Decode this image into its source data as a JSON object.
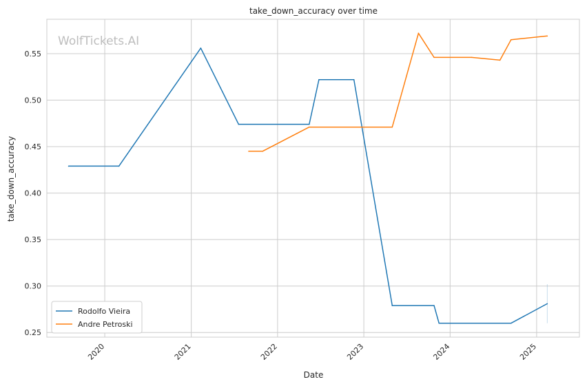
{
  "chart_data": {
    "type": "line",
    "title": "take_down_accuracy over time",
    "xlabel": "Date",
    "ylabel": "take_down_accuracy",
    "watermark": "WolfTickets.AI",
    "x_ticks": [
      "2020",
      "2021",
      "2022",
      "2023",
      "2024",
      "2025"
    ],
    "y_ticks": [
      "0.25",
      "0.30",
      "0.35",
      "0.40",
      "0.45",
      "0.50",
      "0.55"
    ],
    "ylim": [
      0.245,
      0.587
    ],
    "xlim": [
      "2019-05-01",
      "2025-07-01"
    ],
    "grid": true,
    "legend_position": "lower-left",
    "series": [
      {
        "name": "Rodolfo Vieira",
        "color": "#1f77b4",
        "points": [
          {
            "x": "2019-08-01",
            "y": 0.429
          },
          {
            "x": "2020-03-01",
            "y": 0.429
          },
          {
            "x": "2021-02-10",
            "y": 0.556
          },
          {
            "x": "2021-07-20",
            "y": 0.474
          },
          {
            "x": "2022-05-15",
            "y": 0.474
          },
          {
            "x": "2022-06-25",
            "y": 0.522
          },
          {
            "x": "2022-11-20",
            "y": 0.522
          },
          {
            "x": "2023-05-01",
            "y": 0.279
          },
          {
            "x": "2023-10-25",
            "y": 0.279
          },
          {
            "x": "2023-11-15",
            "y": 0.26
          },
          {
            "x": "2024-09-15",
            "y": 0.26
          },
          {
            "x": "2025-02-15",
            "y": 0.281
          }
        ]
      },
      {
        "name": "Andre Petroski",
        "color": "#ff7f0e",
        "points": [
          {
            "x": "2021-09-01",
            "y": 0.445
          },
          {
            "x": "2021-10-30",
            "y": 0.445
          },
          {
            "x": "2022-05-15",
            "y": 0.471
          },
          {
            "x": "2023-05-01",
            "y": 0.471
          },
          {
            "x": "2023-08-20",
            "y": 0.572
          },
          {
            "x": "2023-10-25",
            "y": 0.546
          },
          {
            "x": "2024-04-01",
            "y": 0.546
          },
          {
            "x": "2024-07-30",
            "y": 0.543
          },
          {
            "x": "2024-09-15",
            "y": 0.565
          },
          {
            "x": "2025-02-15",
            "y": 0.569
          }
        ]
      }
    ]
  }
}
